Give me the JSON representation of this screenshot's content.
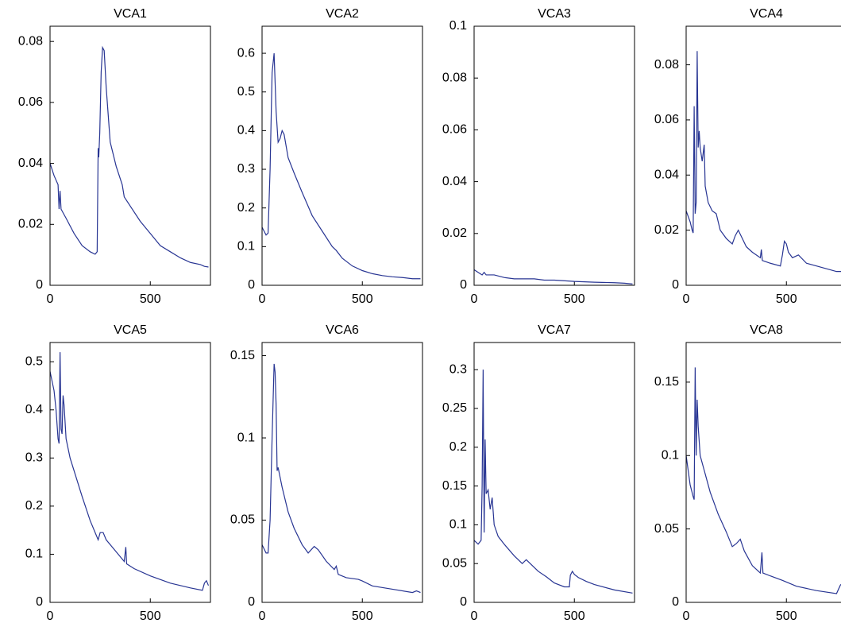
{
  "chart_data": [
    {
      "type": "line",
      "title": "VCA1",
      "color": "#283593",
      "xlim": [
        0,
        800
      ],
      "xticks": [
        0,
        500
      ],
      "ylim": [
        0,
        0.085
      ],
      "yticks": [
        0,
        0.02,
        0.04,
        0.06,
        0.08
      ],
      "x": [
        0,
        20,
        40,
        45,
        50,
        55,
        80,
        120,
        160,
        200,
        225,
        235,
        240,
        243,
        248,
        255,
        262,
        270,
        280,
        300,
        330,
        360,
        370,
        400,
        450,
        500,
        550,
        600,
        650,
        700,
        750,
        770,
        790
      ],
      "values": [
        0.04,
        0.036,
        0.033,
        0.025,
        0.031,
        0.025,
        0.022,
        0.017,
        0.013,
        0.011,
        0.0102,
        0.011,
        0.045,
        0.042,
        0.05,
        0.07,
        0.078,
        0.077,
        0.065,
        0.047,
        0.039,
        0.033,
        0.029,
        0.026,
        0.021,
        0.017,
        0.013,
        0.011,
        0.009,
        0.0075,
        0.0068,
        0.0062,
        0.006
      ]
    },
    {
      "type": "line",
      "title": "VCA2",
      "color": "#283593",
      "xlim": [
        0,
        800
      ],
      "xticks": [
        0,
        500
      ],
      "ylim": [
        0,
        0.67
      ],
      "yticks": [
        0,
        0.1,
        0.2,
        0.3,
        0.4,
        0.5,
        0.6
      ],
      "x": [
        0,
        10,
        20,
        30,
        40,
        50,
        60,
        70,
        80,
        90,
        100,
        110,
        130,
        160,
        200,
        250,
        300,
        350,
        370,
        400,
        450,
        500,
        550,
        600,
        650,
        700,
        750,
        790
      ],
      "values": [
        0.15,
        0.14,
        0.13,
        0.135,
        0.3,
        0.55,
        0.6,
        0.45,
        0.37,
        0.38,
        0.4,
        0.39,
        0.33,
        0.29,
        0.24,
        0.18,
        0.14,
        0.1,
        0.09,
        0.07,
        0.05,
        0.038,
        0.03,
        0.025,
        0.022,
        0.02,
        0.017,
        0.017
      ]
    },
    {
      "type": "line",
      "title": "VCA3",
      "color": "#283593",
      "xlim": [
        0,
        800
      ],
      "xticks": [
        0,
        500
      ],
      "ylim": [
        0,
        0.1
      ],
      "yticks": [
        0,
        0.02,
        0.04,
        0.06,
        0.08,
        0.1
      ],
      "x": [
        0,
        20,
        40,
        50,
        60,
        100,
        150,
        200,
        300,
        350,
        400,
        500,
        600,
        700,
        750,
        790
      ],
      "values": [
        0.006,
        0.005,
        0.004,
        0.005,
        0.004,
        0.004,
        0.003,
        0.0025,
        0.0025,
        0.002,
        0.002,
        0.0015,
        0.0012,
        0.001,
        0.0008,
        0.0005
      ]
    },
    {
      "type": "line",
      "title": "VCA4",
      "color": "#283593",
      "xlim": [
        0,
        800
      ],
      "xticks": [
        0,
        500
      ],
      "ylim": [
        0,
        0.094
      ],
      "yticks": [
        0,
        0.02,
        0.04,
        0.06,
        0.08
      ],
      "x": [
        0,
        20,
        30,
        35,
        40,
        45,
        50,
        55,
        60,
        65,
        70,
        80,
        90,
        95,
        110,
        130,
        150,
        170,
        200,
        230,
        245,
        260,
        280,
        300,
        330,
        370,
        375,
        380,
        420,
        470,
        480,
        490,
        500,
        510,
        530,
        560,
        600,
        650,
        700,
        750,
        790
      ],
      "values": [
        0.027,
        0.023,
        0.02,
        0.019,
        0.065,
        0.026,
        0.03,
        0.085,
        0.05,
        0.056,
        0.05,
        0.045,
        0.051,
        0.036,
        0.03,
        0.027,
        0.026,
        0.02,
        0.017,
        0.015,
        0.018,
        0.02,
        0.017,
        0.014,
        0.012,
        0.01,
        0.013,
        0.009,
        0.008,
        0.007,
        0.011,
        0.016,
        0.015,
        0.012,
        0.01,
        0.011,
        0.008,
        0.007,
        0.006,
        0.005,
        0.005
      ]
    },
    {
      "type": "line",
      "title": "VCA5",
      "color": "#283593",
      "xlim": [
        0,
        800
      ],
      "xticks": [
        0,
        500
      ],
      "ylim": [
        0,
        0.54
      ],
      "yticks": [
        0,
        0.1,
        0.2,
        0.3,
        0.4,
        0.5
      ],
      "x": [
        0,
        20,
        30,
        40,
        45,
        50,
        55,
        60,
        65,
        70,
        80,
        100,
        130,
        160,
        200,
        240,
        250,
        265,
        280,
        320,
        360,
        370,
        378,
        382,
        420,
        500,
        600,
        700,
        760,
        770,
        780,
        790
      ],
      "values": [
        0.48,
        0.44,
        0.4,
        0.34,
        0.33,
        0.52,
        0.36,
        0.35,
        0.43,
        0.41,
        0.34,
        0.3,
        0.26,
        0.22,
        0.17,
        0.13,
        0.145,
        0.145,
        0.13,
        0.11,
        0.09,
        0.085,
        0.115,
        0.08,
        0.07,
        0.055,
        0.04,
        0.03,
        0.025,
        0.04,
        0.045,
        0.035
      ]
    },
    {
      "type": "line",
      "title": "VCA6",
      "color": "#283593",
      "xlim": [
        0,
        800
      ],
      "xticks": [
        0,
        500
      ],
      "ylim": [
        0,
        0.158
      ],
      "yticks": [
        0,
        0.05,
        0.1,
        0.15
      ],
      "x": [
        0,
        20,
        30,
        40,
        50,
        60,
        65,
        70,
        75,
        80,
        100,
        130,
        160,
        200,
        230,
        260,
        280,
        320,
        360,
        370,
        380,
        420,
        480,
        500,
        550,
        650,
        750,
        770,
        790
      ],
      "values": [
        0.035,
        0.03,
        0.03,
        0.05,
        0.1,
        0.145,
        0.14,
        0.12,
        0.08,
        0.082,
        0.07,
        0.055,
        0.045,
        0.035,
        0.03,
        0.034,
        0.032,
        0.025,
        0.02,
        0.022,
        0.017,
        0.015,
        0.014,
        0.013,
        0.01,
        0.008,
        0.006,
        0.007,
        0.006
      ]
    },
    {
      "type": "line",
      "title": "VCA7",
      "color": "#283593",
      "xlim": [
        0,
        800
      ],
      "xticks": [
        0,
        500
      ],
      "ylim": [
        0,
        0.335
      ],
      "yticks": [
        0,
        0.05,
        0.1,
        0.15,
        0.2,
        0.25,
        0.3
      ],
      "x": [
        0,
        20,
        35,
        40,
        45,
        50,
        55,
        60,
        70,
        80,
        90,
        100,
        120,
        150,
        200,
        240,
        260,
        280,
        320,
        360,
        400,
        450,
        475,
        480,
        490,
        500,
        520,
        560,
        600,
        700,
        790
      ],
      "values": [
        0.08,
        0.075,
        0.08,
        0.15,
        0.3,
        0.09,
        0.21,
        0.14,
        0.145,
        0.12,
        0.135,
        0.1,
        0.085,
        0.075,
        0.06,
        0.05,
        0.055,
        0.05,
        0.04,
        0.033,
        0.025,
        0.02,
        0.02,
        0.035,
        0.04,
        0.036,
        0.032,
        0.027,
        0.023,
        0.016,
        0.012
      ]
    },
    {
      "type": "line",
      "title": "VCA8",
      "color": "#283593",
      "xlim": [
        0,
        800
      ],
      "xticks": [
        0,
        500
      ],
      "ylim": [
        0,
        0.177
      ],
      "yticks": [
        0,
        0.05,
        0.1,
        0.15
      ],
      "x": [
        0,
        20,
        35,
        40,
        45,
        50,
        55,
        60,
        70,
        90,
        120,
        160,
        200,
        230,
        250,
        270,
        290,
        330,
        370,
        378,
        383,
        420,
        480,
        550,
        650,
        750,
        770,
        790
      ],
      "values": [
        0.1,
        0.08,
        0.072,
        0.07,
        0.16,
        0.1,
        0.138,
        0.12,
        0.1,
        0.09,
        0.075,
        0.06,
        0.048,
        0.038,
        0.04,
        0.043,
        0.035,
        0.025,
        0.02,
        0.034,
        0.02,
        0.018,
        0.015,
        0.011,
        0.008,
        0.006,
        0.012,
        0.013
      ]
    }
  ]
}
